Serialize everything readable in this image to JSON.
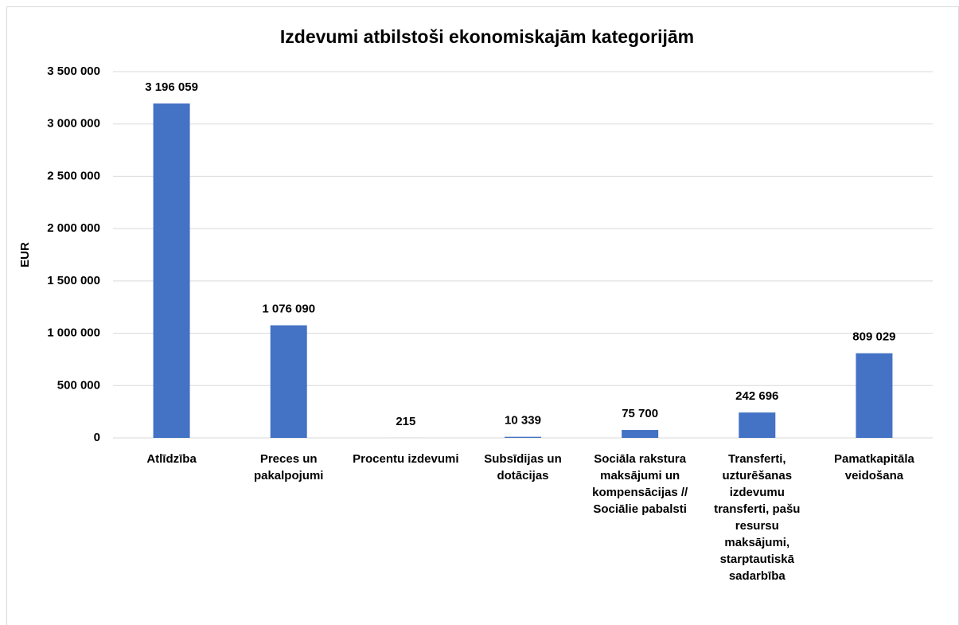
{
  "chart_data": {
    "type": "bar",
    "title": "Izdevumi atbilstoši ekonomiskajām kategorijām",
    "y_label": "EUR",
    "categories": [
      "Atlīdzība",
      "Preces un pakalpojumi",
      "Procentu izdevumi",
      "Subsīdijas un dotācijas",
      "Sociāla rakstura maksājumi un kompensācijas // Sociālie pabalsti",
      "Transferti, uzturēšanas izdevumu transferti, pašu resursu maksājumi, starptautiskā sadarbība",
      "Pamatkapitāla veidošana"
    ],
    "values": [
      3196059,
      1076090,
      215,
      10339,
      75700,
      242696,
      809029
    ],
    "value_labels": [
      "3 196 059",
      "1 076 090",
      "215",
      "10 339",
      "75 700",
      "242 696",
      "809 029"
    ],
    "color": "#4472c4",
    "ylim": [
      0,
      3500000
    ],
    "yticks": [
      0,
      {
        "value": 500000,
        "label": "500 000"
      },
      {
        "value": 1000000,
        "label": "1 000 000"
      },
      {
        "value": 1500000,
        "label": "1 500 000"
      },
      {
        "value": 2000000,
        "label": "2 000 000"
      },
      {
        "value": 2500000,
        "label": "2 500 000"
      },
      {
        "value": 3000000,
        "label": "3 000 000"
      },
      {
        "value": 3500000,
        "label": "3 500 000"
      }
    ],
    "grid": true
  }
}
